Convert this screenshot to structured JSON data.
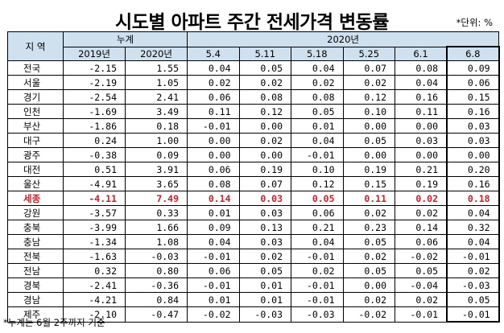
{
  "title": "시도별 아파트 주간 전세가격 변동률",
  "unit_note": "*단위: %",
  "footnote": "*누계는 6월 2주까지 기준",
  "header": {
    "region_label": "지 역",
    "cumulative_label": "누계",
    "period_label": "2020년",
    "cumulative_years": [
      "2019년",
      "2020년"
    ],
    "weeks": [
      "5.4",
      "5.11",
      "5.18",
      "5.25",
      "6.1",
      "6.8"
    ]
  },
  "highlight_color": "#c8202a",
  "header_bg_color": "#cfe0ee",
  "rows": [
    {
      "region": "전국",
      "values": [
        "-2.15",
        "1.55",
        "0.04",
        "0.05",
        "0.04",
        "0.07",
        "0.08",
        "0.09"
      ]
    },
    {
      "region": "서울",
      "values": [
        "-2.19",
        "1.05",
        "0.02",
        "0.02",
        "0.02",
        "0.02",
        "0.04",
        "0.06"
      ]
    },
    {
      "region": "경기",
      "values": [
        "-2.54",
        "2.41",
        "0.06",
        "0.08",
        "0.08",
        "0.12",
        "0.16",
        "0.15"
      ]
    },
    {
      "region": "인천",
      "values": [
        "-1.69",
        "3.49",
        "0.11",
        "0.12",
        "0.05",
        "0.10",
        "0.11",
        "0.16"
      ]
    },
    {
      "region": "부산",
      "values": [
        "-1.86",
        "0.18",
        "-0.01",
        "0.00",
        "0.01",
        "0.00",
        "0.00",
        "0.03"
      ]
    },
    {
      "region": "대구",
      "values": [
        "0.24",
        "1.00",
        "0.00",
        "0.02",
        "0.04",
        "0.05",
        "0.03",
        "0.03"
      ]
    },
    {
      "region": "광주",
      "values": [
        "-0.38",
        "0.09",
        "0.00",
        "0.00",
        "-0.01",
        "0.00",
        "0.00",
        "0.00"
      ]
    },
    {
      "region": "대전",
      "values": [
        "0.51",
        "3.91",
        "0.06",
        "0.19",
        "0.10",
        "0.19",
        "0.21",
        "0.20"
      ]
    },
    {
      "region": "울산",
      "values": [
        "-4.91",
        "3.65",
        "0.08",
        "0.07",
        "0.12",
        "0.15",
        "0.19",
        "0.16"
      ]
    },
    {
      "region": "세종",
      "values": [
        "-4.11",
        "7.49",
        "0.14",
        "0.03",
        "0.05",
        "0.11",
        "0.02",
        "0.18"
      ],
      "highlight": true
    },
    {
      "region": "강원",
      "values": [
        "-3.57",
        "0.33",
        "0.01",
        "0.03",
        "0.06",
        "0.02",
        "0.02",
        "0.04"
      ]
    },
    {
      "region": "충북",
      "values": [
        "-3.99",
        "1.66",
        "0.09",
        "0.13",
        "0.21",
        "0.23",
        "0.14",
        "0.32"
      ]
    },
    {
      "region": "충남",
      "values": [
        "-1.34",
        "1.08",
        "0.04",
        "0.03",
        "0.04",
        "0.05",
        "0.06",
        "0.04"
      ]
    },
    {
      "region": "전북",
      "values": [
        "-1.63",
        "-0.03",
        "-0.01",
        "0.02",
        "-0.01",
        "0.02",
        "-0.02",
        "-0.01"
      ]
    },
    {
      "region": "전남",
      "values": [
        "0.32",
        "0.80",
        "0.06",
        "0.05",
        "0.02",
        "0.05",
        "0.05",
        "0.02"
      ]
    },
    {
      "region": "경북",
      "values": [
        "-2.41",
        "-0.36",
        "-0.01",
        "0.01",
        "-0.01",
        "0.00",
        "-0.04",
        "-0.03"
      ]
    },
    {
      "region": "경남",
      "values": [
        "-4.21",
        "0.84",
        "0.01",
        "0.01",
        "-0.01",
        "0.02",
        "0.02",
        "0.05"
      ]
    },
    {
      "region": "제주",
      "values": [
        "-2.10",
        "-0.47",
        "-0.02",
        "-0.03",
        "-0.03",
        "-0.02",
        "-0.01",
        "-0.01"
      ]
    }
  ]
}
